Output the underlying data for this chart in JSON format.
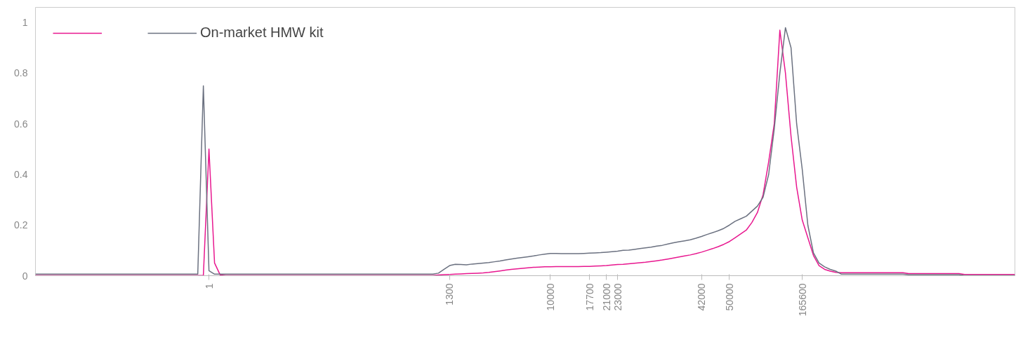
{
  "chart_data": {
    "type": "line",
    "legend": "top left",
    "grid": false,
    "ylim": [
      0,
      1.06
    ],
    "yticks": [
      0,
      0.2,
      0.4,
      0.6,
      0.8,
      1
    ],
    "categories": [
      null,
      null,
      null,
      null,
      null,
      null,
      null,
      null,
      null,
      null,
      null,
      null,
      null,
      null,
      null,
      null,
      null,
      null,
      null,
      null,
      null,
      null,
      null,
      null,
      null,
      null,
      null,
      null,
      null,
      null,
      null,
      "1",
      null,
      null,
      null,
      null,
      null,
      null,
      null,
      null,
      null,
      null,
      null,
      null,
      null,
      null,
      null,
      null,
      null,
      null,
      null,
      null,
      null,
      null,
      null,
      null,
      null,
      null,
      null,
      null,
      null,
      null,
      null,
      null,
      null,
      null,
      null,
      null,
      null,
      null,
      null,
      null,
      null,
      null,
      "1300",
      null,
      null,
      null,
      null,
      null,
      null,
      null,
      null,
      null,
      null,
      null,
      null,
      null,
      null,
      null,
      null,
      null,
      "10000",
      null,
      null,
      null,
      null,
      null,
      null,
      "17700",
      null,
      null,
      "21000",
      null,
      "23000",
      null,
      null,
      null,
      null,
      null,
      null,
      null,
      null,
      null,
      null,
      null,
      null,
      null,
      null,
      "42000",
      null,
      null,
      null,
      null,
      "50000",
      null,
      null,
      null,
      null,
      null,
      null,
      null,
      null,
      null,
      null,
      null,
      null,
      "165600",
      null,
      null,
      null,
      null,
      null,
      null,
      null,
      null,
      null,
      null,
      null,
      null,
      null,
      null,
      null,
      null,
      null,
      null,
      null,
      null,
      null,
      null,
      null,
      null,
      null,
      null,
      null,
      null,
      null,
      null,
      null,
      null,
      null,
      null,
      null,
      null,
      null,
      null
    ],
    "series": [
      {
        "color": "#e8178f",
        "values": [
          0.001,
          0.001,
          0.001,
          0.001,
          0.001,
          0.001,
          0.001,
          0.001,
          0.001,
          0.001,
          0.001,
          0.001,
          0.001,
          0.001,
          0.001,
          0.001,
          0.001,
          0.001,
          0.001,
          0.001,
          0.001,
          0.001,
          0.001,
          0.001,
          0.001,
          0.001,
          0.001,
          0.001,
          0.001,
          0.001,
          0.001,
          0.5,
          0.05,
          0.003,
          0.001,
          0.001,
          0.001,
          0.001,
          0.001,
          0.001,
          0.001,
          0.001,
          0.001,
          0.001,
          0.001,
          0.001,
          0.001,
          0.001,
          0.001,
          0.001,
          0.001,
          0.001,
          0.001,
          0.001,
          0.001,
          0.001,
          0.001,
          0.001,
          0.001,
          0.001,
          0.001,
          0.001,
          0.001,
          0.001,
          0.001,
          0.001,
          0.001,
          0.001,
          0.001,
          0.001,
          0.001,
          0.001,
          0.003,
          0.004,
          0.005,
          0.006,
          0.007,
          0.008,
          0.009,
          0.01,
          0.011,
          0.013,
          0.016,
          0.019,
          0.022,
          0.025,
          0.027,
          0.029,
          0.031,
          0.033,
          0.034,
          0.035,
          0.035,
          0.036,
          0.036,
          0.036,
          0.036,
          0.036,
          0.037,
          0.037,
          0.038,
          0.039,
          0.04,
          0.042,
          0.044,
          0.045,
          0.047,
          0.049,
          0.051,
          0.053,
          0.056,
          0.059,
          0.062,
          0.066,
          0.07,
          0.074,
          0.078,
          0.082,
          0.087,
          0.093,
          0.1,
          0.107,
          0.115,
          0.124,
          0.135,
          0.15,
          0.165,
          0.18,
          0.21,
          0.25,
          0.32,
          0.45,
          0.6,
          0.97,
          0.8,
          0.55,
          0.35,
          0.22,
          0.15,
          0.08,
          0.04,
          0.025,
          0.018,
          0.013,
          0.012,
          0.012,
          0.012,
          0.012,
          0.012,
          0.012,
          0.012,
          0.012,
          0.012,
          0.012,
          0.012,
          0.012,
          0.008,
          0.008,
          0.008,
          0.008,
          0.008,
          0.008,
          0.008,
          0.008,
          0.008,
          0.008,
          0.005,
          0.005,
          0.005,
          0.005,
          0.005,
          0.005,
          0.005,
          0.005,
          0.005,
          0.005
        ]
      },
      {
        "name": "On-market HMW kit",
        "color": "#6b7180",
        "values": [
          0.006,
          0.006,
          0.006,
          0.006,
          0.006,
          0.006,
          0.006,
          0.006,
          0.006,
          0.006,
          0.006,
          0.006,
          0.006,
          0.006,
          0.006,
          0.006,
          0.006,
          0.006,
          0.006,
          0.006,
          0.006,
          0.006,
          0.006,
          0.006,
          0.006,
          0.006,
          0.006,
          0.006,
          0.006,
          0.006,
          0.75,
          0.02,
          0.006,
          0.006,
          0.006,
          0.006,
          0.006,
          0.006,
          0.006,
          0.006,
          0.006,
          0.006,
          0.006,
          0.006,
          0.006,
          0.006,
          0.006,
          0.006,
          0.006,
          0.006,
          0.006,
          0.006,
          0.006,
          0.006,
          0.006,
          0.006,
          0.006,
          0.006,
          0.006,
          0.006,
          0.006,
          0.006,
          0.006,
          0.006,
          0.006,
          0.006,
          0.006,
          0.006,
          0.006,
          0.006,
          0.006,
          0.006,
          0.01,
          0.025,
          0.04,
          0.045,
          0.044,
          0.043,
          0.046,
          0.048,
          0.05,
          0.052,
          0.055,
          0.058,
          0.062,
          0.066,
          0.069,
          0.072,
          0.075,
          0.078,
          0.082,
          0.085,
          0.088,
          0.088,
          0.087,
          0.087,
          0.087,
          0.087,
          0.088,
          0.089,
          0.09,
          0.091,
          0.093,
          0.095,
          0.097,
          0.1,
          0.101,
          0.104,
          0.107,
          0.11,
          0.113,
          0.117,
          0.12,
          0.125,
          0.13,
          0.134,
          0.138,
          0.142,
          0.148,
          0.155,
          0.163,
          0.17,
          0.178,
          0.187,
          0.2,
          0.215,
          0.225,
          0.235,
          0.255,
          0.275,
          0.31,
          0.4,
          0.58,
          0.8,
          0.98,
          0.9,
          0.6,
          0.42,
          0.2,
          0.09,
          0.05,
          0.035,
          0.025,
          0.018,
          0.006,
          0.006,
          0.006,
          0.006,
          0.006,
          0.006,
          0.006,
          0.006,
          0.006,
          0.006,
          0.006,
          0.006,
          0.004,
          0.004,
          0.004,
          0.004,
          0.004,
          0.004,
          0.004,
          0.004,
          0.004,
          0.004,
          0.001,
          0.001,
          0.001,
          0.001,
          0.001,
          0.001,
          0.001,
          0.001,
          0.001,
          0.001
        ]
      }
    ]
  }
}
